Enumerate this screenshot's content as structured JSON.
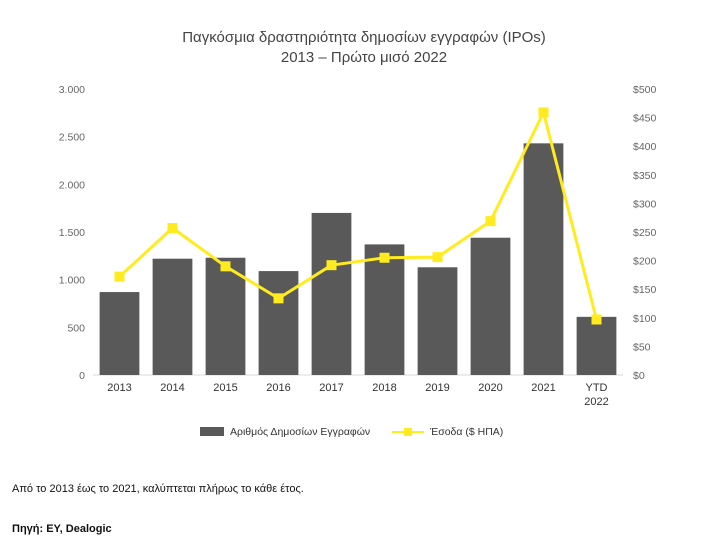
{
  "chart_data": {
    "type": "bar+line",
    "title_line1": "Παγκόσμια δραστηριότητα δημοσίων εγγραφών (IPOs)",
    "title_line2": "2013 – Πρώτο μισό 2022",
    "categories": [
      "2013",
      "2014",
      "2015",
      "2016",
      "2017",
      "2018",
      "2019",
      "2020",
      "2021",
      "YTD 2022"
    ],
    "category_lines": [
      [
        "2013"
      ],
      [
        "2014"
      ],
      [
        "2015"
      ],
      [
        "2016"
      ],
      [
        "2017"
      ],
      [
        "2018"
      ],
      [
        "2019"
      ],
      [
        "2020"
      ],
      [
        "2021"
      ],
      [
        "YTD",
        "2022"
      ]
    ],
    "series": [
      {
        "name": "Αριθμός Δημοσίων Εγγραφών",
        "type": "bar",
        "axis": "left",
        "color": "#595959",
        "values": [
          870,
          1220,
          1230,
          1090,
          1700,
          1370,
          1130,
          1440,
          2430,
          610
        ]
      },
      {
        "name": "Έσοδα ($ ΗΠΑ)",
        "type": "line",
        "axis": "right",
        "color": "#FFEB1E",
        "values": [
          172,
          257,
          190,
          134,
          192,
          205,
          206,
          269,
          459,
          97
        ]
      }
    ],
    "y_left": {
      "range": [
        0,
        3000
      ],
      "ticks": [
        0,
        500,
        1000,
        1500,
        2000,
        2500,
        3000
      ],
      "tick_labels": [
        "0",
        "500",
        "1.000",
        "1.500",
        "2.000",
        "2.500",
        "3.000"
      ]
    },
    "y_right": {
      "range": [
        0,
        500
      ],
      "ticks": [
        0,
        50,
        100,
        150,
        200,
        250,
        300,
        350,
        400,
        450,
        500
      ],
      "tick_labels": [
        "$0",
        "$50",
        "$100",
        "$150",
        "$200",
        "$250",
        "$300",
        "$350",
        "$400",
        "$450",
        "$500"
      ]
    },
    "grid": false,
    "legend_position": "bottom"
  },
  "note": "Από το 2013 έως το 2021, καλύπτεται πλήρως το κάθε έτος.",
  "source": "Πηγή: EY, Dealogic"
}
